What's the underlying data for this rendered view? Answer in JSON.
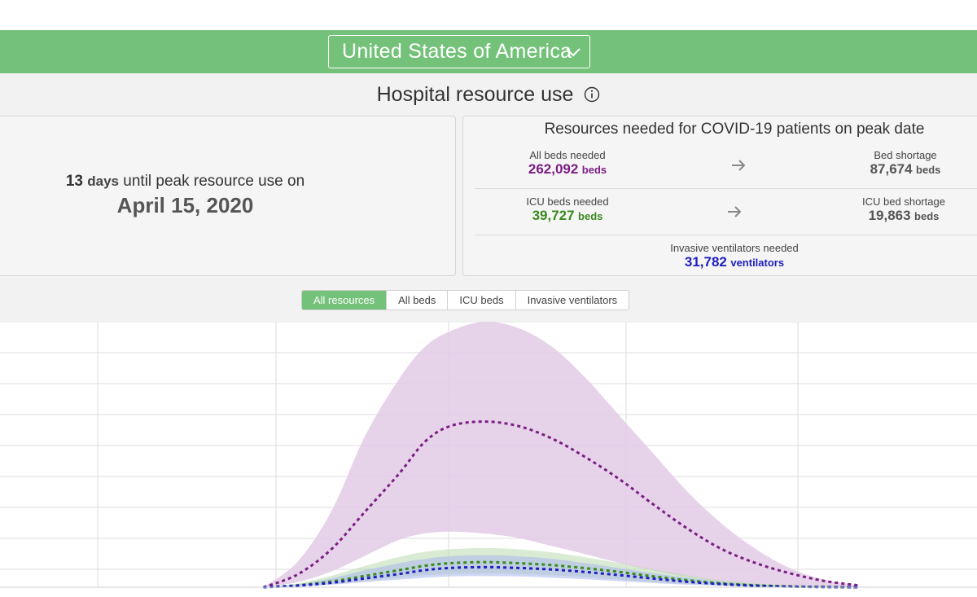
{
  "header": {
    "country": "United States of America"
  },
  "section": {
    "title": "Hospital resource use"
  },
  "peak": {
    "days_number": "13",
    "days_unit": "days",
    "days_suffix": "until peak resource use on",
    "date": "April 15, 2020"
  },
  "resources": {
    "title": "Resources needed for COVID-19 patients on peak date",
    "all_beds": {
      "label": "All beds needed",
      "value": "262,092",
      "unit": "beds"
    },
    "bed_shortage": {
      "label": "Bed shortage",
      "value": "87,674",
      "unit": "beds"
    },
    "icu_beds": {
      "label": "ICU beds needed",
      "value": "39,727",
      "unit": "beds"
    },
    "icu_shortage": {
      "label": "ICU bed shortage",
      "value": "19,863",
      "unit": "beds"
    },
    "ventilators": {
      "label": "Invasive ventilators needed",
      "value": "31,782",
      "unit": "ventilators"
    }
  },
  "tabs": [
    {
      "label": "All resources",
      "active": true
    },
    {
      "label": "All beds",
      "active": false
    },
    {
      "label": "ICU beds",
      "active": false
    },
    {
      "label": "Invasive ventilators",
      "active": false
    }
  ],
  "colors": {
    "accent_green": "#74c27a",
    "all_beds": "#7b1e83",
    "icu_beds": "#3a8a1e",
    "ventilators": "#1f1fbf"
  },
  "chart_data": {
    "type": "area",
    "title": "",
    "xlabel": "",
    "ylabel": "",
    "x": [
      -19,
      -15,
      -11,
      -7,
      -3,
      0,
      3,
      7,
      11,
      15,
      19,
      23,
      27,
      31,
      35,
      39,
      43,
      47,
      51
    ],
    "xlim": [
      -50,
      65
    ],
    "ylim": [
      0,
      420000
    ],
    "grid": true,
    "series": [
      {
        "name": "All beds",
        "color": "#7b1e83",
        "mean": [
          0,
          20000,
          60000,
          120000,
          180000,
          230000,
          255000,
          262000,
          255000,
          235000,
          205000,
          170000,
          130000,
          92000,
          60000,
          38000,
          22000,
          10000,
          3000
        ],
        "lower": [
          0,
          8000,
          25000,
          50000,
          75000,
          85000,
          88000,
          85000,
          78000,
          65000,
          52000,
          38000,
          26000,
          16000,
          9000,
          4000,
          2000,
          800,
          200
        ],
        "upper": [
          0,
          40000,
          120000,
          240000,
          330000,
          380000,
          405000,
          420000,
          410000,
          380000,
          330000,
          270000,
          210000,
          150000,
          100000,
          60000,
          30000,
          12000,
          3000
        ]
      },
      {
        "name": "ICU beds",
        "color": "#3a8a1e",
        "mean": [
          0,
          3000,
          9000,
          18000,
          27000,
          34000,
          38000,
          39700,
          38000,
          35000,
          30000,
          24000,
          17000,
          11000,
          6000,
          3000,
          1200,
          400,
          0
        ],
        "lower": [
          0,
          1500,
          5000,
          10000,
          15000,
          19000,
          21000,
          22000,
          21000,
          19000,
          16000,
          12000,
          8000,
          5000,
          2800,
          1300,
          500,
          100,
          0
        ],
        "upper": [
          0,
          6000,
          18000,
          34000,
          48000,
          56000,
          60000,
          62000,
          60000,
          55000,
          47000,
          38000,
          28000,
          19000,
          11000,
          6000,
          2500,
          800,
          0
        ]
      },
      {
        "name": "Invasive ventilators",
        "color": "#1f1fbf",
        "mean": [
          0,
          2500,
          7000,
          14000,
          21000,
          27000,
          30500,
          31800,
          30500,
          28000,
          24000,
          19000,
          13500,
          8500,
          4800,
          2300,
          900,
          300,
          0
        ],
        "lower": [
          0,
          1200,
          4000,
          8000,
          12000,
          15000,
          17000,
          17500,
          17000,
          15000,
          12500,
          9500,
          6500,
          4000,
          2200,
          1000,
          400,
          100,
          0
        ],
        "upper": [
          0,
          4500,
          14000,
          27000,
          38000,
          45000,
          49000,
          50500,
          49000,
          45000,
          38000,
          30000,
          22000,
          15000,
          9000,
          4800,
          2000,
          700,
          0
        ]
      }
    ]
  }
}
